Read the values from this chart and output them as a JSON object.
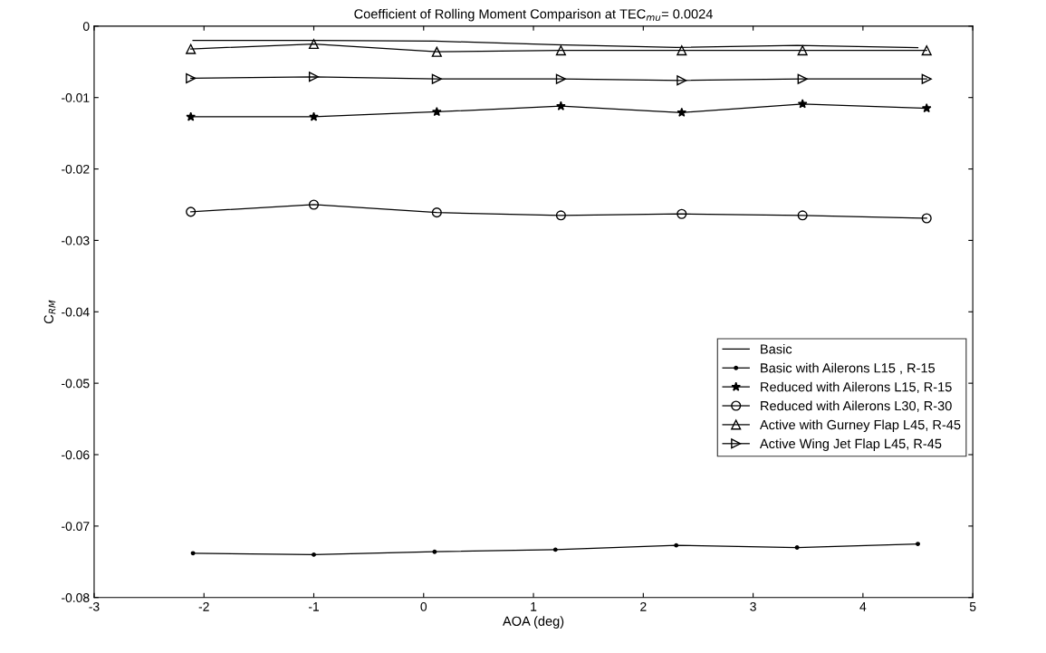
{
  "chart_data": {
    "type": "line",
    "title": "Coefficient of Rolling Moment Comparison at TEC$_{mu}$= 0.0024",
    "xlabel": "AOA (deg)",
    "ylabel": "C$_{RM}$",
    "xlim": [
      -3,
      5
    ],
    "xticks": [
      -3,
      -2,
      -1,
      0,
      1,
      2,
      3,
      4,
      5
    ],
    "ylim": [
      -0.08,
      0
    ],
    "yticks": [
      -0.08,
      -0.07,
      -0.06,
      -0.05,
      -0.04,
      -0.03,
      -0.02,
      -0.01,
      0
    ],
    "legend": "right",
    "grid": false,
    "line_style": "solid",
    "series": [
      {
        "name": "Basic",
        "color": "#000000",
        "marker": "none",
        "x": [
          -2.1,
          -1.0,
          0.1,
          1.2,
          2.3,
          3.4,
          4.5
        ],
        "values": [
          -0.002,
          -0.002,
          -0.0021,
          -0.0026,
          -0.003,
          -0.0027,
          -0.003
        ]
      },
      {
        "name": "Basic with Ailerons L15 , R-15",
        "color": "#000000",
        "marker": "point",
        "x": [
          -2.1,
          -1.0,
          0.1,
          1.2,
          2.3,
          3.4,
          4.5
        ],
        "values": [
          -0.0738,
          -0.074,
          -0.0736,
          -0.0733,
          -0.0727,
          -0.073,
          -0.0725
        ]
      },
      {
        "name": "Reduced with Ailerons L15, R-15",
        "color": "#000000",
        "marker": "star",
        "x": [
          -2.12,
          -1.0,
          0.12,
          1.25,
          2.35,
          3.45,
          4.58
        ],
        "values": [
          -0.0127,
          -0.0127,
          -0.012,
          -0.0112,
          -0.0121,
          -0.0109,
          -0.0115
        ]
      },
      {
        "name": "Reduced with Ailerons L30, R-30",
        "color": "#000000",
        "marker": "circle",
        "x": [
          -2.12,
          -1.0,
          0.12,
          1.25,
          2.35,
          3.45,
          4.58
        ],
        "values": [
          -0.026,
          -0.025,
          -0.0261,
          -0.0265,
          -0.0263,
          -0.0265,
          -0.0269
        ]
      },
      {
        "name": "Active with Gurney Flap L45, R-45",
        "color": "#000000",
        "marker": "triangle",
        "x": [
          -2.12,
          -1.0,
          0.12,
          1.25,
          2.35,
          3.45,
          4.58
        ],
        "values": [
          -0.0032,
          -0.0025,
          -0.0036,
          -0.0034,
          -0.0034,
          -0.0034,
          -0.0034
        ]
      },
      {
        "name": "Active Wing Jet Flap L45, R-45",
        "color": "#000000",
        "marker": "triangle_right",
        "x": [
          -2.12,
          -1.0,
          0.12,
          1.25,
          2.35,
          3.45,
          4.58
        ],
        "values": [
          -0.0073,
          -0.0071,
          -0.0074,
          -0.0074,
          -0.0076,
          -0.0074,
          -0.0074
        ]
      }
    ]
  }
}
